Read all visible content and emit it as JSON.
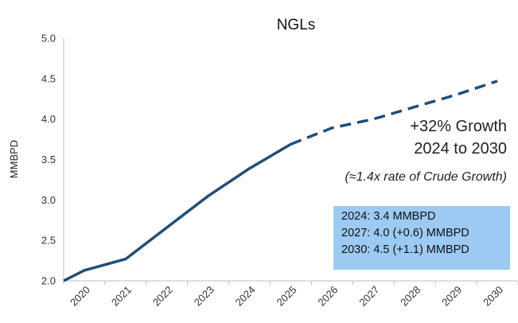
{
  "chart_data": {
    "type": "line",
    "title": "NGLs",
    "ylabel": "MMBPD",
    "xlabel": "",
    "ylim": [
      2.0,
      5.0
    ],
    "yticks": [
      "2.0",
      "2.5",
      "3.0",
      "3.5",
      "4.0",
      "4.5",
      "5.0"
    ],
    "categories": [
      "2020",
      "2021",
      "2022",
      "2023",
      "2024",
      "2025",
      "2026",
      "2027",
      "2028",
      "2029",
      "2030"
    ],
    "series": [
      {
        "style": "solid",
        "color": "#1f4e79",
        "x": [
          2020.0,
          2020.5,
          2021.5,
          2022.5,
          2023.5,
          2024.5,
          2025.5
        ],
        "y": [
          2.0,
          2.13,
          2.27,
          2.66,
          3.05,
          3.39,
          3.69
        ]
      },
      {
        "style": "dashed",
        "color": "#1f4e79",
        "x": [
          2025.5,
          2026.5,
          2027.5,
          2028.5,
          2029.5,
          2030.5
        ],
        "y": [
          3.69,
          3.89,
          4.0,
          4.15,
          4.3,
          4.47
        ]
      }
    ],
    "grid": false,
    "legend": "none"
  },
  "annotations": {
    "growth_line1": "+32% Growth",
    "growth_line2": "2024 to 2030",
    "rate_note": "(≈1.4x rate of Crude Growth)",
    "info_lines": [
      "2024: 3.4 MMBPD",
      "2027: 4.0 (+0.6) MMBPD",
      "2030: 4.5 (+1.1) MMBPD"
    ]
  },
  "colors": {
    "line": "#1f4e79",
    "infobox_bg": "#9ccaf3"
  }
}
